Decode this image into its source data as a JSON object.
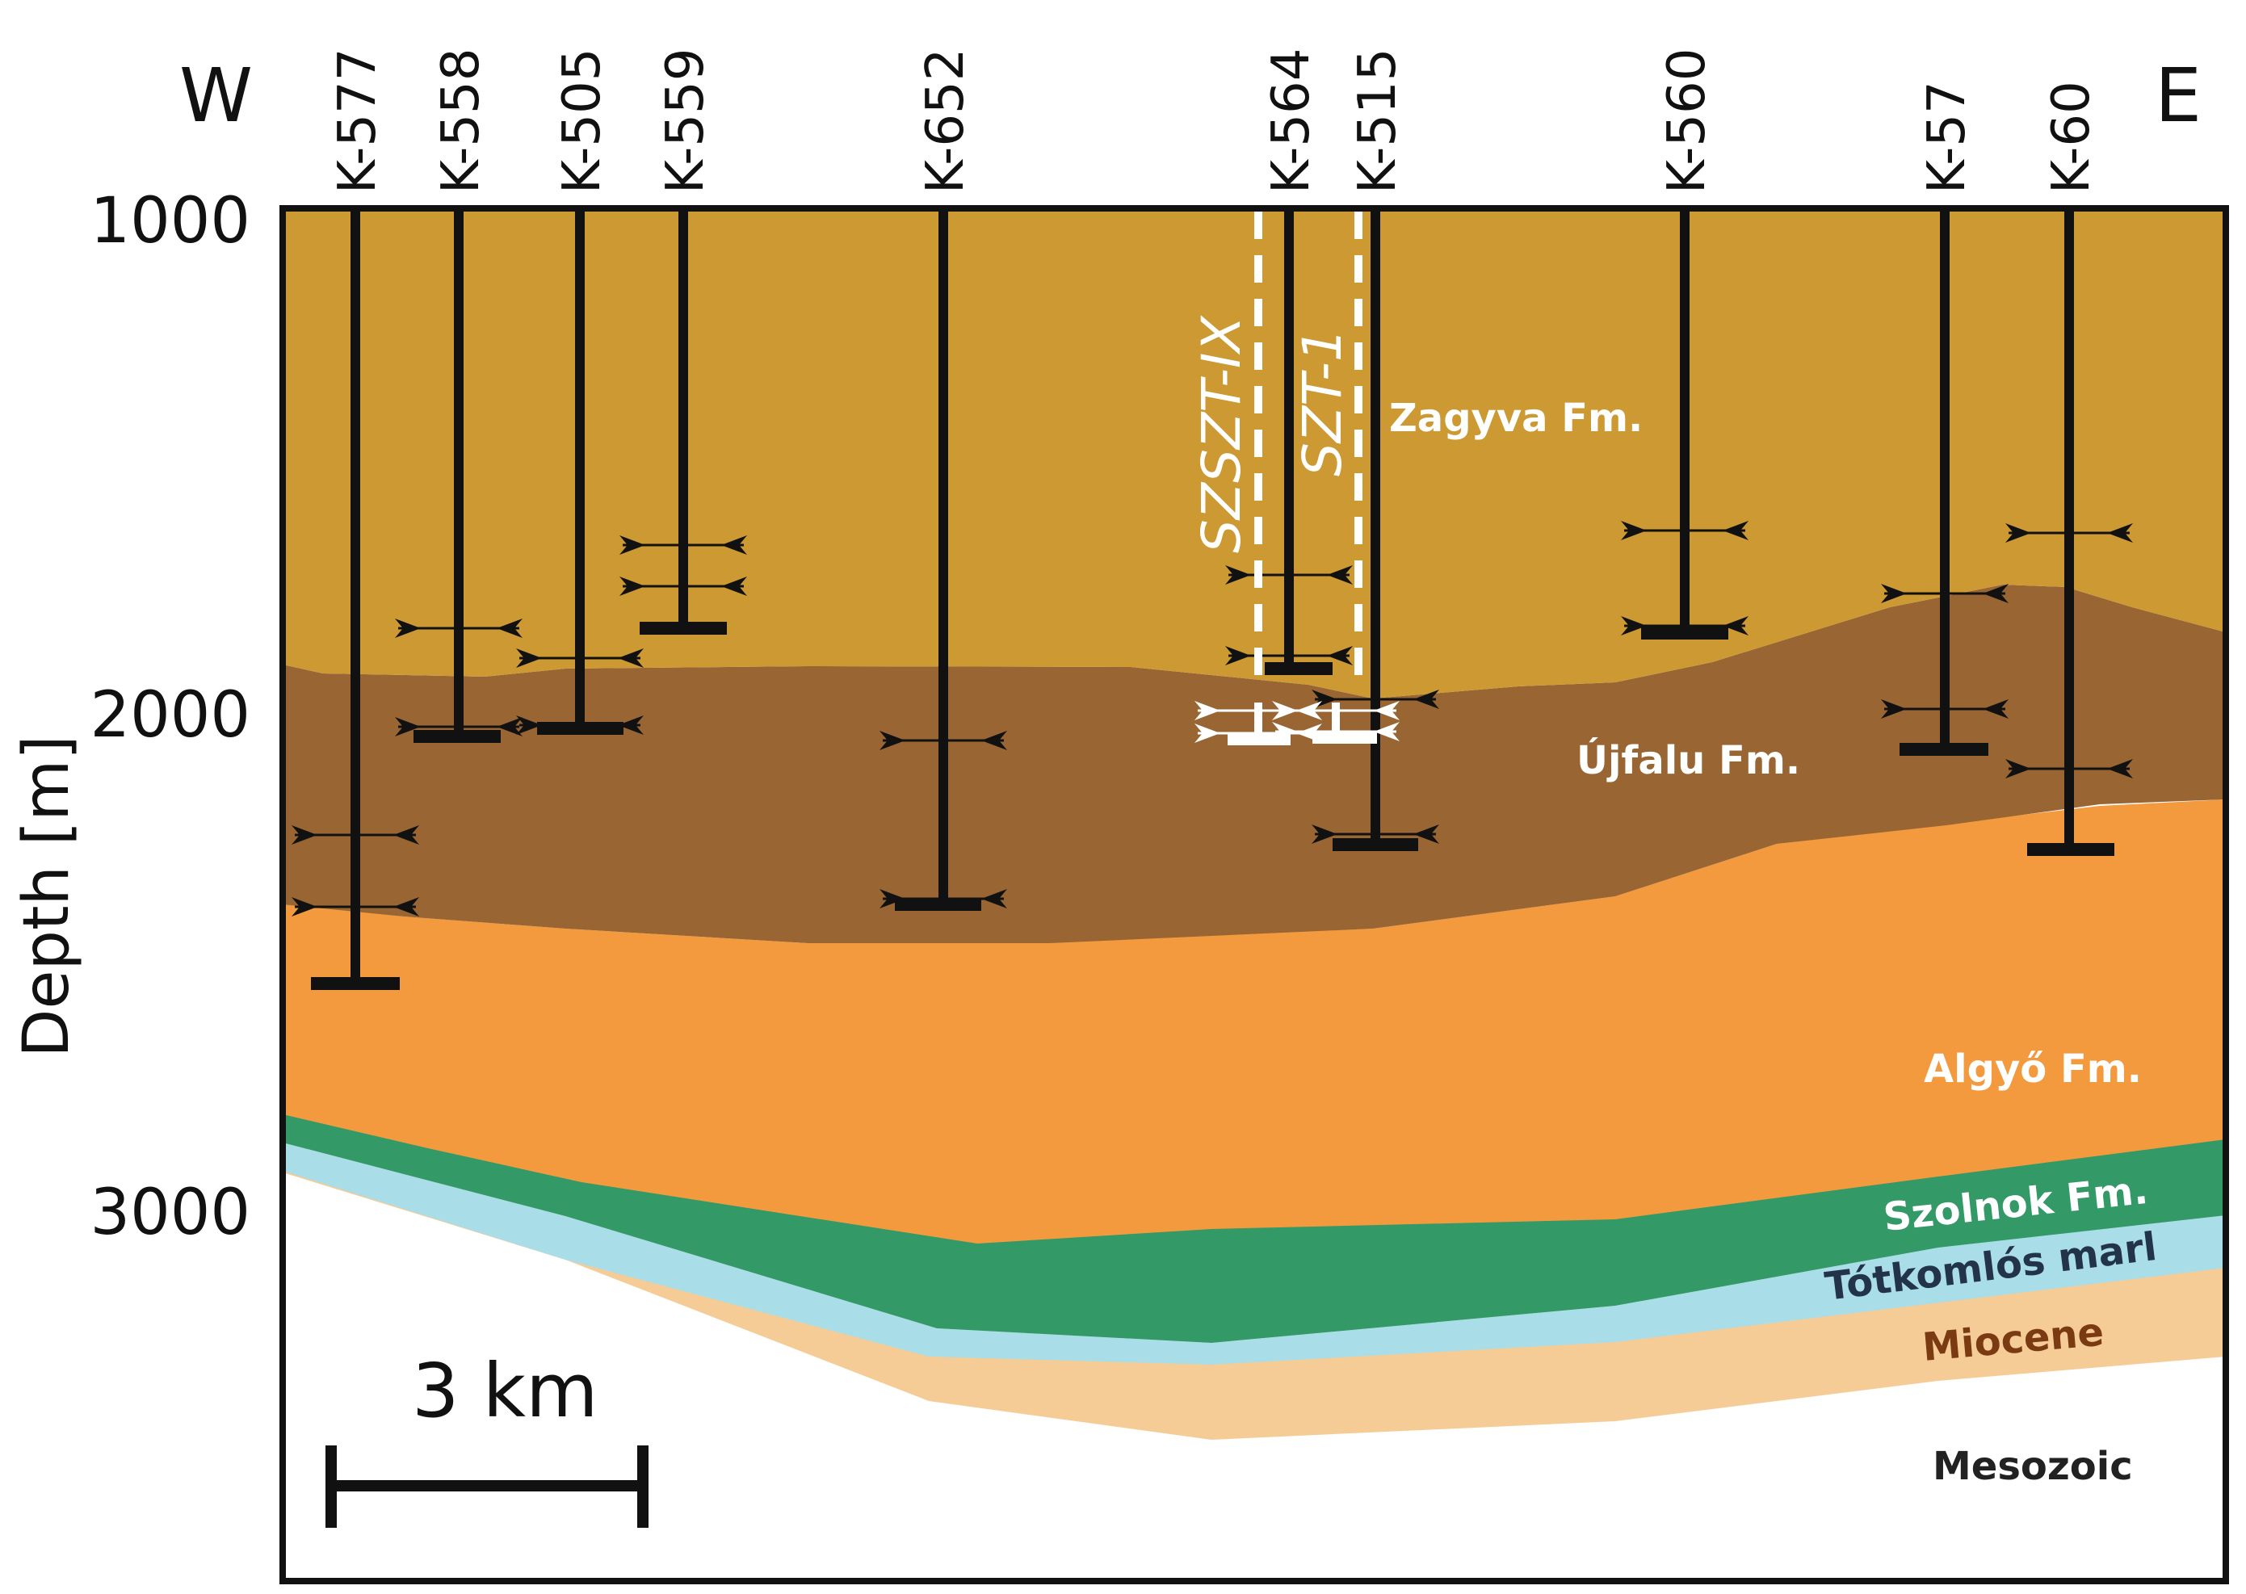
{
  "orientation": {
    "west": "W",
    "east": "E"
  },
  "y_axis": {
    "label": "Depth [m]",
    "ticks": [
      "1000",
      "2000",
      "3000"
    ]
  },
  "wells": [
    "K-577",
    "K-558",
    "K-505",
    "K-559",
    "K-652",
    "K-564",
    "K-515",
    "K-560",
    "K-57",
    "K-60"
  ],
  "sidetracks": [
    "SZSZT-IX",
    "SZT-1"
  ],
  "formations": {
    "zagyva": "Zagyva Fm.",
    "ujfalu": "Újfalu Fm.",
    "algyo": "Algyő Fm.",
    "szolnok": "Szolnok Fm.",
    "totkomlos": "Tótkomlós marl",
    "miocene": "Miocene",
    "mesozoic": "Mesozoic"
  },
  "colors": {
    "zagyva": "#cc9933",
    "ujfalu": "#996633",
    "algyo": "#f39a3e",
    "szolnok": "#339966",
    "totkomlos": "#a9dde8",
    "miocene": "#f6cc96",
    "mesozoic": "#ffffff"
  },
  "scale_bar": {
    "label": "3 km"
  }
}
